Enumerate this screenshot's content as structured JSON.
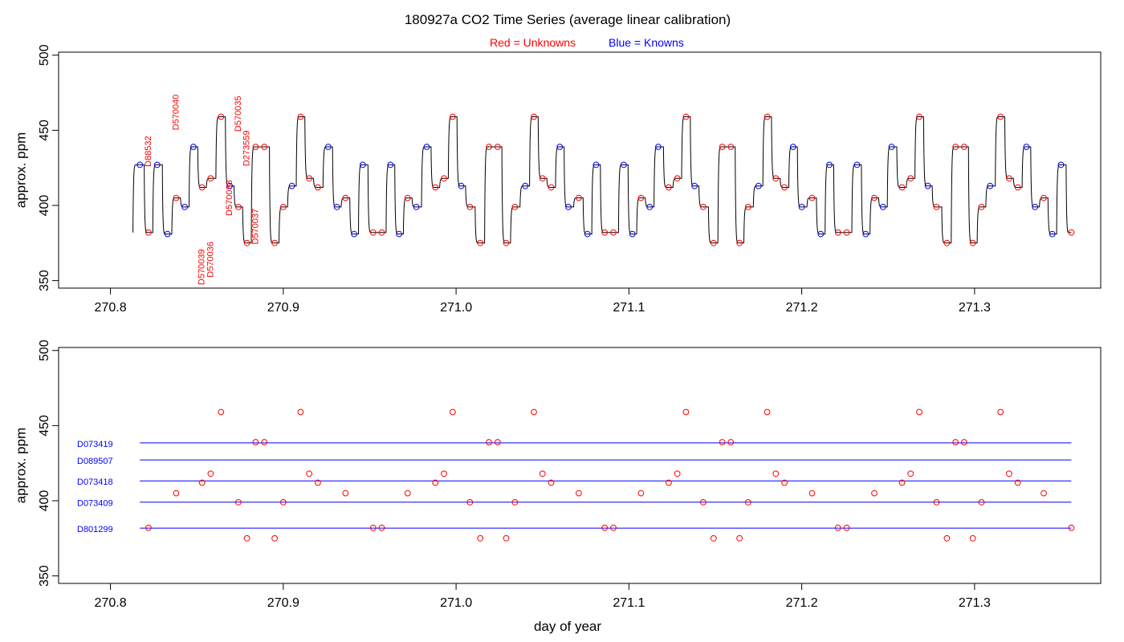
{
  "title": "180927a   CO2 Time Series (average linear calibration)",
  "legend": {
    "unknowns": {
      "prefix": "Red",
      "eq": " = ",
      "label": "Unknowns",
      "color": "#ff0000"
    },
    "knowns": {
      "prefix": "Blue",
      "eq": " = ",
      "label": "Knowns",
      "color": "#0000ff"
    }
  },
  "xlabel": "day of year",
  "colors": {
    "unknown": "#ff0000",
    "known": "#0000ff",
    "trace": "#000000"
  },
  "chart_data": [
    {
      "type": "line",
      "name": "top-panel",
      "xlim": [
        270.77,
        271.373
      ],
      "ylim": [
        345,
        502
      ],
      "ylabel": "approx. ppm",
      "xticks": [
        270.8,
        270.9,
        271.0,
        271.1,
        271.2,
        271.3
      ],
      "xtick_labels": [
        "270.8",
        "270.9",
        "271.0",
        "271.1",
        "271.2",
        "271.3"
      ],
      "yticks": [
        350,
        400,
        450,
        500
      ],
      "ytick_labels": [
        "350",
        "400",
        "450",
        "500"
      ],
      "trace_start": {
        "x": 270.813,
        "y": 382
      },
      "samples": [
        {
          "x": 270.817,
          "y": 427,
          "kind": "known"
        },
        {
          "x": 270.822,
          "y": 382,
          "kind": "unknown"
        },
        {
          "x": 270.827,
          "y": 427,
          "kind": "known"
        },
        {
          "x": 270.833,
          "y": 381,
          "kind": "known"
        },
        {
          "x": 270.838,
          "y": 405,
          "kind": "unknown"
        },
        {
          "x": 270.843,
          "y": 399,
          "kind": "known"
        },
        {
          "x": 270.848,
          "y": 439,
          "kind": "known"
        },
        {
          "x": 270.853,
          "y": 412,
          "kind": "unknown"
        },
        {
          "x": 270.858,
          "y": 418,
          "kind": "unknown"
        },
        {
          "x": 270.864,
          "y": 459,
          "kind": "unknown"
        },
        {
          "x": 270.869,
          "y": 413,
          "kind": "known"
        },
        {
          "x": 270.874,
          "y": 399,
          "kind": "unknown"
        },
        {
          "x": 270.879,
          "y": 375,
          "kind": "unknown"
        },
        {
          "x": 270.884,
          "y": 439,
          "kind": "unknown"
        },
        {
          "x": 270.889,
          "y": 439,
          "kind": "unknown"
        },
        {
          "x": 270.895,
          "y": 375,
          "kind": "unknown"
        },
        {
          "x": 270.9,
          "y": 399,
          "kind": "unknown"
        },
        {
          "x": 270.905,
          "y": 413,
          "kind": "known"
        },
        {
          "x": 270.91,
          "y": 459,
          "kind": "unknown"
        },
        {
          "x": 270.915,
          "y": 418,
          "kind": "unknown"
        },
        {
          "x": 270.92,
          "y": 412,
          "kind": "unknown"
        },
        {
          "x": 270.926,
          "y": 439,
          "kind": "known"
        },
        {
          "x": 270.931,
          "y": 399,
          "kind": "known"
        },
        {
          "x": 270.936,
          "y": 405,
          "kind": "unknown"
        },
        {
          "x": 270.941,
          "y": 381,
          "kind": "known"
        },
        {
          "x": 270.946,
          "y": 427,
          "kind": "known"
        },
        {
          "x": 270.952,
          "y": 382,
          "kind": "unknown"
        },
        {
          "x": 270.957,
          "y": 382,
          "kind": "unknown"
        },
        {
          "x": 270.962,
          "y": 427,
          "kind": "known"
        },
        {
          "x": 270.967,
          "y": 381,
          "kind": "known"
        },
        {
          "x": 270.972,
          "y": 405,
          "kind": "unknown"
        },
        {
          "x": 270.977,
          "y": 399,
          "kind": "known"
        },
        {
          "x": 270.983,
          "y": 439,
          "kind": "known"
        },
        {
          "x": 270.988,
          "y": 412,
          "kind": "unknown"
        },
        {
          "x": 270.993,
          "y": 418,
          "kind": "unknown"
        },
        {
          "x": 270.998,
          "y": 459,
          "kind": "unknown"
        },
        {
          "x": 271.003,
          "y": 413,
          "kind": "known"
        },
        {
          "x": 271.008,
          "y": 399,
          "kind": "unknown"
        },
        {
          "x": 271.014,
          "y": 375,
          "kind": "unknown"
        },
        {
          "x": 271.019,
          "y": 439,
          "kind": "unknown"
        },
        {
          "x": 271.024,
          "y": 439,
          "kind": "unknown"
        },
        {
          "x": 271.029,
          "y": 375,
          "kind": "unknown"
        },
        {
          "x": 271.034,
          "y": 399,
          "kind": "unknown"
        },
        {
          "x": 271.04,
          "y": 413,
          "kind": "known"
        },
        {
          "x": 271.045,
          "y": 459,
          "kind": "unknown"
        },
        {
          "x": 271.05,
          "y": 418,
          "kind": "unknown"
        },
        {
          "x": 271.055,
          "y": 412,
          "kind": "unknown"
        },
        {
          "x": 271.06,
          "y": 439,
          "kind": "known"
        },
        {
          "x": 271.065,
          "y": 399,
          "kind": "known"
        },
        {
          "x": 271.071,
          "y": 405,
          "kind": "unknown"
        },
        {
          "x": 271.076,
          "y": 381,
          "kind": "known"
        },
        {
          "x": 271.081,
          "y": 427,
          "kind": "known"
        },
        {
          "x": 271.086,
          "y": 382,
          "kind": "unknown"
        },
        {
          "x": 271.091,
          "y": 382,
          "kind": "unknown"
        },
        {
          "x": 271.097,
          "y": 427,
          "kind": "known"
        },
        {
          "x": 271.102,
          "y": 381,
          "kind": "known"
        },
        {
          "x": 271.107,
          "y": 405,
          "kind": "unknown"
        },
        {
          "x": 271.112,
          "y": 399,
          "kind": "known"
        },
        {
          "x": 271.117,
          "y": 439,
          "kind": "known"
        },
        {
          "x": 271.123,
          "y": 412,
          "kind": "unknown"
        },
        {
          "x": 271.128,
          "y": 418,
          "kind": "unknown"
        },
        {
          "x": 271.133,
          "y": 459,
          "kind": "unknown"
        },
        {
          "x": 271.138,
          "y": 413,
          "kind": "known"
        },
        {
          "x": 271.143,
          "y": 399,
          "kind": "unknown"
        },
        {
          "x": 271.149,
          "y": 375,
          "kind": "unknown"
        },
        {
          "x": 271.154,
          "y": 439,
          "kind": "unknown"
        },
        {
          "x": 271.159,
          "y": 439,
          "kind": "unknown"
        },
        {
          "x": 271.164,
          "y": 375,
          "kind": "unknown"
        },
        {
          "x": 271.169,
          "y": 399,
          "kind": "unknown"
        },
        {
          "x": 271.175,
          "y": 413,
          "kind": "known"
        },
        {
          "x": 271.18,
          "y": 459,
          "kind": "unknown"
        },
        {
          "x": 271.185,
          "y": 418,
          "kind": "unknown"
        },
        {
          "x": 271.19,
          "y": 412,
          "kind": "unknown"
        },
        {
          "x": 271.195,
          "y": 439,
          "kind": "known"
        },
        {
          "x": 271.2,
          "y": 399,
          "kind": "known"
        },
        {
          "x": 271.206,
          "y": 405,
          "kind": "unknown"
        },
        {
          "x": 271.211,
          "y": 381,
          "kind": "known"
        },
        {
          "x": 271.216,
          "y": 427,
          "kind": "known"
        },
        {
          "x": 271.221,
          "y": 382,
          "kind": "unknown"
        },
        {
          "x": 271.226,
          "y": 382,
          "kind": "unknown"
        },
        {
          "x": 271.232,
          "y": 427,
          "kind": "known"
        },
        {
          "x": 271.237,
          "y": 381,
          "kind": "known"
        },
        {
          "x": 271.242,
          "y": 405,
          "kind": "unknown"
        },
        {
          "x": 271.247,
          "y": 399,
          "kind": "known"
        },
        {
          "x": 271.252,
          "y": 439,
          "kind": "known"
        },
        {
          "x": 271.258,
          "y": 412,
          "kind": "unknown"
        },
        {
          "x": 271.263,
          "y": 418,
          "kind": "unknown"
        },
        {
          "x": 271.268,
          "y": 459,
          "kind": "unknown"
        },
        {
          "x": 271.273,
          "y": 413,
          "kind": "known"
        },
        {
          "x": 271.278,
          "y": 399,
          "kind": "unknown"
        },
        {
          "x": 271.284,
          "y": 375,
          "kind": "unknown"
        },
        {
          "x": 271.289,
          "y": 439,
          "kind": "unknown"
        },
        {
          "x": 271.294,
          "y": 439,
          "kind": "unknown"
        },
        {
          "x": 271.299,
          "y": 375,
          "kind": "unknown"
        },
        {
          "x": 271.304,
          "y": 399,
          "kind": "unknown"
        },
        {
          "x": 271.309,
          "y": 413,
          "kind": "known"
        },
        {
          "x": 271.315,
          "y": 459,
          "kind": "unknown"
        },
        {
          "x": 271.32,
          "y": 418,
          "kind": "unknown"
        },
        {
          "x": 271.325,
          "y": 412,
          "kind": "unknown"
        },
        {
          "x": 271.33,
          "y": 439,
          "kind": "known"
        },
        {
          "x": 271.335,
          "y": 399,
          "kind": "known"
        },
        {
          "x": 271.34,
          "y": 405,
          "kind": "unknown"
        },
        {
          "x": 271.345,
          "y": 381,
          "kind": "known"
        },
        {
          "x": 271.35,
          "y": 427,
          "kind": "known"
        },
        {
          "x": 271.356,
          "y": 382,
          "kind": "unknown"
        }
      ],
      "annotations": [
        {
          "text": "D88532",
          "x": 270.822,
          "y": 436
        },
        {
          "text": "D570040",
          "x": 270.838,
          "y": 462
        },
        {
          "text": "D570039",
          "x": 270.853,
          "y": 359
        },
        {
          "text": "D570036",
          "x": 270.858,
          "y": 364
        },
        {
          "text": "D570038",
          "x": 270.869,
          "y": 405
        },
        {
          "text": "D570035",
          "x": 270.874,
          "y": 461
        },
        {
          "text": "D273559",
          "x": 270.879,
          "y": 438
        },
        {
          "text": "D570037",
          "x": 270.884,
          "y": 386
        }
      ]
    },
    {
      "type": "scatter",
      "name": "bottom-panel",
      "xlim": [
        270.77,
        271.373
      ],
      "ylim": [
        345,
        502
      ],
      "ylabel": "approx. ppm",
      "xlabel": "day of year",
      "xticks": [
        270.8,
        270.9,
        271.0,
        271.1,
        271.2,
        271.3
      ],
      "xtick_labels": [
        "270.8",
        "270.9",
        "271.0",
        "271.1",
        "271.2",
        "271.3"
      ],
      "yticks": [
        350,
        400,
        450,
        500
      ],
      "ytick_labels": [
        "350",
        "400",
        "450",
        "500"
      ],
      "reference_lines": [
        {
          "label": "D073419",
          "y": 438.5,
          "color": "#0000ff",
          "x_start": 270.817,
          "x_end": 271.356
        },
        {
          "label": "D089507",
          "y": 427.2,
          "color": "#0000ff",
          "x_start": 270.817,
          "x_end": 271.356
        },
        {
          "label": "D073418",
          "y": 413.2,
          "color": "#0000ff",
          "x_start": 270.817,
          "x_end": 271.356
        },
        {
          "label": "D073409",
          "y": 399.1,
          "color": "#0000ff",
          "x_start": 270.817,
          "x_end": 271.356
        },
        {
          "label": "D801299",
          "y": 381.8,
          "color": "#0000ff",
          "x_start": 270.817,
          "x_end": 271.356
        }
      ],
      "points_x": [
        270.822,
        270.838,
        270.853,
        270.858,
        270.864,
        270.874,
        270.879,
        270.884,
        270.889,
        270.895,
        270.9,
        270.91,
        270.915,
        270.92,
        270.936,
        270.952,
        270.957,
        270.972,
        270.988,
        270.993,
        270.998,
        271.008,
        271.014,
        271.019,
        271.024,
        271.029,
        271.034,
        271.045,
        271.05,
        271.055,
        271.071,
        271.086,
        271.091,
        271.107,
        271.123,
        271.128,
        271.133,
        271.143,
        271.149,
        271.154,
        271.159,
        271.164,
        271.169,
        271.18,
        271.185,
        271.19,
        271.206,
        271.221,
        271.226,
        271.242,
        271.258,
        271.263,
        271.268,
        271.278,
        271.284,
        271.289,
        271.294,
        271.299,
        271.304,
        271.315,
        271.32,
        271.325,
        271.34,
        271.356
      ],
      "points_y": [
        382,
        405,
        412,
        418,
        459,
        399,
        375,
        439,
        439,
        375,
        399,
        459,
        418,
        412,
        405,
        382,
        382,
        405,
        412,
        418,
        459,
        399,
        375,
        439,
        439,
        375,
        399,
        459,
        418,
        412,
        405,
        382,
        382,
        405,
        412,
        418,
        459,
        399,
        375,
        439,
        439,
        375,
        399,
        459,
        418,
        412,
        405,
        382,
        382,
        405,
        412,
        418,
        459,
        399,
        375,
        439,
        439,
        375,
        399,
        459,
        418,
        412,
        405,
        382
      ]
    }
  ]
}
